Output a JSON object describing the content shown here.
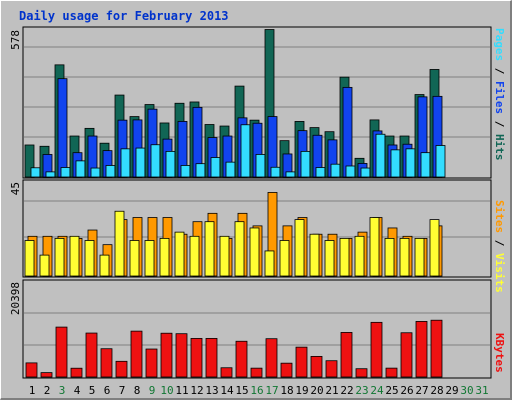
{
  "title": "Daily usage for February 2013",
  "colors": {
    "hits": "#116655",
    "files": "#1144ee",
    "pages": "#33ddff",
    "visits": "#ff9900",
    "sites": "#ffff33",
    "kbytes": "#ee1111",
    "weekend_label": "#117733",
    "weekday_label": "#000000",
    "title": "#0033cc"
  },
  "chart_data": [
    {
      "type": "bar",
      "panel": "hits-files-pages",
      "ymax_label": "578",
      "ylim": [
        0,
        578
      ],
      "legend": [
        "Pages",
        "Files",
        "Hits"
      ],
      "categories": [
        "1",
        "2",
        "3",
        "4",
        "5",
        "6",
        "7",
        "8",
        "9",
        "10",
        "11",
        "12",
        "13",
        "14",
        "15",
        "16",
        "17",
        "18",
        "19",
        "20",
        "21",
        "22",
        "23",
        "24",
        "25",
        "26",
        "27",
        "28",
        "29",
        "30",
        "31"
      ],
      "series": [
        {
          "name": "Hits",
          "values": [
            125,
            120,
            438,
            160,
            190,
            132,
            320,
            236,
            283,
            211,
            288,
            293,
            205,
            199,
            355,
            222,
            576,
            142,
            217,
            193,
            177,
            390,
            73,
            223,
            160,
            160,
            322,
            420,
            null,
            null,
            null
          ]
        },
        {
          "name": "Files",
          "values": [
            0,
            88,
            384,
            95,
            160,
            103,
            222,
            223,
            265,
            148,
            217,
            272,
            154,
            160,
            231,
            210,
            236,
            90,
            181,
            163,
            145,
            350,
            53,
            180,
            125,
            128,
            313,
            315,
            null,
            null,
            null
          ]
        },
        {
          "name": "Pages",
          "values": [
            36,
            20,
            37,
            63,
            35,
            45,
            110,
            113,
            126,
            100,
            45,
            52,
            76,
            58,
            204,
            88,
            38,
            20,
            100,
            37,
            50,
            43,
            35,
            167,
            106,
            110,
            95,
            123,
            null,
            null,
            null
          ]
        }
      ]
    },
    {
      "type": "bar",
      "panel": "visits-sites",
      "ymax_label": "45",
      "ylim": [
        0,
        45
      ],
      "legend": [
        "Sites",
        "Visits"
      ],
      "categories": [
        "1",
        "2",
        "3",
        "4",
        "5",
        "6",
        "7",
        "8",
        "9",
        "10",
        "11",
        "12",
        "13",
        "14",
        "15",
        "16",
        "17",
        "18",
        "19",
        "20",
        "21",
        "22",
        "23",
        "24",
        "25",
        "26",
        "27",
        "28",
        "29",
        "30",
        "31"
      ],
      "series": [
        {
          "name": "Visits",
          "values": [
            19,
            19,
            19,
            18,
            22,
            15,
            27,
            28,
            28,
            28,
            20,
            26,
            30,
            18,
            30,
            24,
            40,
            24,
            28,
            20,
            20,
            18,
            21,
            28,
            23,
            19,
            18,
            24,
            null,
            null,
            null
          ]
        },
        {
          "name": "Sites",
          "values": [
            17,
            10,
            18,
            19,
            17,
            10,
            31,
            17,
            17,
            18,
            21,
            19,
            26,
            19,
            26,
            23,
            12,
            17,
            27,
            20,
            17,
            18,
            19,
            28,
            18,
            18,
            18,
            27,
            null,
            null,
            null
          ]
        }
      ]
    },
    {
      "type": "bar",
      "panel": "kbytes",
      "ymax_label": "20398",
      "ylim": [
        0,
        20398
      ],
      "legend": [
        "KBytes"
      ],
      "categories": [
        "1",
        "2",
        "3",
        "4",
        "5",
        "6",
        "7",
        "8",
        "9",
        "10",
        "11",
        "12",
        "13",
        "14",
        "15",
        "16",
        "17",
        "18",
        "19",
        "20",
        "21",
        "22",
        "23",
        "24",
        "25",
        "26",
        "27",
        "28",
        "29",
        "30",
        "31"
      ],
      "series": [
        {
          "name": "KBytes",
          "values": [
            3063,
            952,
            10830,
            1907,
            9536,
            6138,
            3405,
            9953,
            6069,
            9502,
            9398,
            8371,
            8372,
            2009,
            7756,
            1920,
            8312,
            3000,
            6478,
            4471,
            3535,
            9671,
            1800,
            11862,
            1925,
            9603,
            12061,
            12322,
            null,
            null,
            null
          ]
        }
      ]
    }
  ],
  "weekend_days": [
    3,
    9,
    10,
    16,
    17,
    23,
    24,
    30,
    31
  ]
}
